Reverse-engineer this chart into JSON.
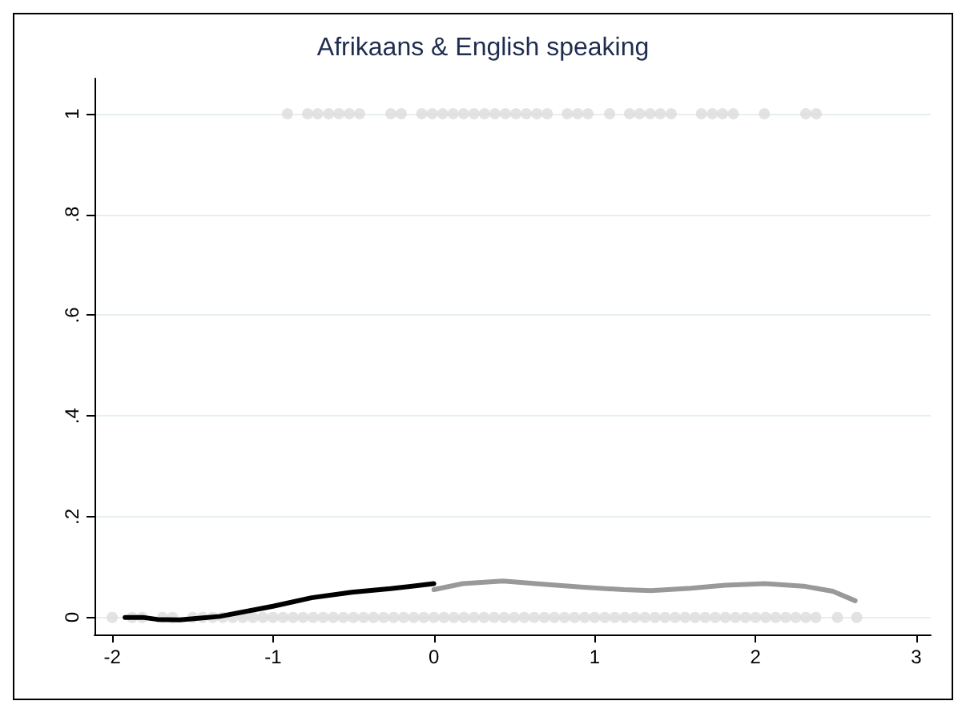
{
  "chart_data": {
    "type": "scatter",
    "title": "Afrikaans & English speaking",
    "series": [
      {
        "color": "#dcdcdc",
        "marker": "circle",
        "x": [
          -0.91,
          -0.785,
          -0.722,
          -0.654,
          -0.59,
          -0.526,
          -0.462,
          -0.267,
          -0.203,
          -0.075,
          -0.01,
          0.055,
          0.12,
          0.185,
          0.25,
          0.315,
          0.38,
          0.445,
          0.51,
          0.575,
          0.64,
          0.705,
          0.83,
          0.894,
          0.958,
          1.093,
          1.217,
          1.28,
          1.345,
          1.408,
          1.476,
          1.664,
          1.732,
          1.795,
          1.862,
          2.055,
          2.313,
          2.378
        ],
        "values": [
          1,
          1,
          1,
          1,
          1,
          1,
          1,
          1,
          1,
          1,
          1,
          1,
          1,
          1,
          1,
          1,
          1,
          1,
          1,
          1,
          1,
          1,
          1,
          1,
          1,
          1,
          1,
          1,
          1,
          1,
          1,
          1,
          1,
          1,
          1,
          1,
          1,
          1
        ]
      },
      {
        "color": "#dcdcdc",
        "marker": "circle",
        "x": [
          -2.0,
          -1.875,
          -1.8125,
          -1.6875,
          -1.625,
          -1.5,
          -1.4375,
          -1.375,
          -1.3125,
          -1.25,
          -1.1875,
          -1.125,
          -1.0625,
          -1.0,
          -0.9375,
          -0.875,
          -0.8125,
          -0.75,
          -0.6875,
          -0.625,
          -0.5625,
          -0.5,
          -0.4375,
          -0.375,
          -0.3125,
          -0.25,
          -0.1875,
          -0.125,
          -0.0625,
          0.0,
          0.0625,
          0.125,
          0.1875,
          0.25,
          0.3125,
          0.375,
          0.4375,
          0.5,
          0.5625,
          0.625,
          0.6875,
          0.75,
          0.8125,
          0.875,
          0.9375,
          1.0,
          1.0625,
          1.125,
          1.1875,
          1.25,
          1.3125,
          1.375,
          1.4375,
          1.5,
          1.5625,
          1.625,
          1.6875,
          1.75,
          1.8125,
          1.875,
          1.9375,
          2.0,
          2.0625,
          2.125,
          2.1875,
          2.25,
          2.3125,
          2.375,
          2.51,
          2.63
        ],
        "values": [
          0,
          0,
          0,
          0,
          0,
          0,
          0,
          0,
          0,
          0,
          0,
          0,
          0,
          0,
          0,
          0,
          0,
          0,
          0,
          0,
          0,
          0,
          0,
          0,
          0,
          0,
          0,
          0,
          0,
          0,
          0,
          0,
          0,
          0,
          0,
          0,
          0,
          0,
          0,
          0,
          0,
          0,
          0,
          0,
          0,
          0,
          0,
          0,
          0,
          0,
          0,
          0,
          0,
          0,
          0,
          0,
          0,
          0,
          0,
          0,
          0,
          0,
          0,
          0,
          0,
          0,
          0,
          0,
          0,
          0
        ]
      },
      {
        "type": "line",
        "color": "#000000",
        "marker": "none",
        "x": [
          -1.92,
          -1.81,
          -1.72,
          -1.58,
          -1.33,
          -1.0,
          -0.76,
          -0.51,
          -0.27,
          0.0
        ],
        "values": [
          0,
          0,
          -0.004,
          -0.005,
          0.002,
          0.022,
          0.039,
          0.05,
          0.057,
          0.067
        ]
      },
      {
        "type": "line",
        "color": "#999999",
        "marker": "none",
        "x": [
          0.0,
          0.18,
          0.43,
          0.68,
          0.93,
          1.18,
          1.35,
          1.6,
          1.81,
          2.06,
          2.3,
          2.48,
          2.62
        ],
        "values": [
          0.055,
          0.067,
          0.072,
          0.066,
          0.06,
          0.055,
          0.053,
          0.058,
          0.064,
          0.067,
          0.062,
          0.052,
          0.033
        ]
      }
    ],
    "xlim": [
      -2.11,
      3.09
    ],
    "xticks": [
      -2,
      -1,
      0,
      1,
      2,
      3
    ],
    "ylim": [
      -0.034,
      1.07
    ],
    "yticks": [
      {
        "value": 0,
        "label": "0"
      },
      {
        "value": 0.2,
        "label": ".2"
      },
      {
        "value": 0.4,
        "label": ".4"
      },
      {
        "value": 0.6,
        "label": ".6"
      },
      {
        "value": 0.8,
        "label": ".8"
      },
      {
        "value": 1,
        "label": "1"
      }
    ],
    "grid": "y"
  }
}
